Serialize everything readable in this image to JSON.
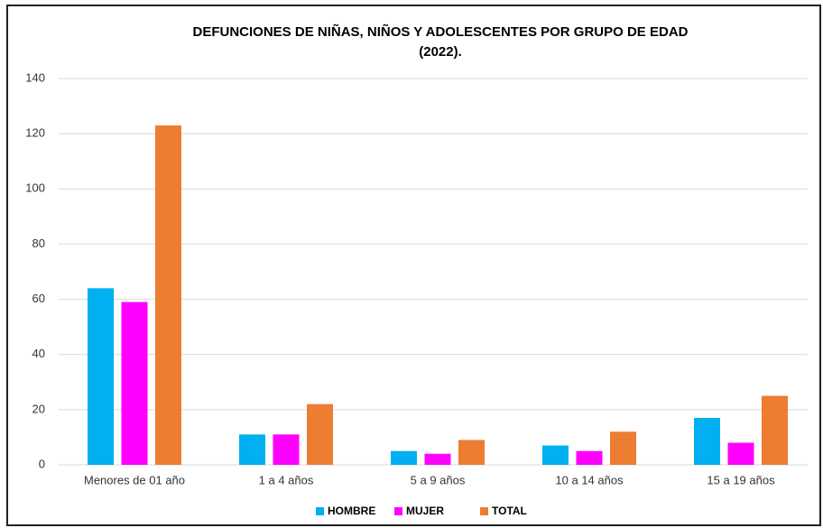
{
  "chart_data": {
    "type": "bar",
    "title": [
      "DEFUNCIONES DE NIÑAS, NIÑOS Y ADOLESCENTES POR GRUPO DE EDAD",
      "(2022)."
    ],
    "categories": [
      "Menores de 01 año",
      "1 a 4 años",
      "5 a 9 años",
      "10 a 14 años",
      "15 a 19 años"
    ],
    "series": [
      {
        "name": "HOMBRE",
        "color": "#00b0f0",
        "values": [
          64,
          11,
          5,
          7,
          17
        ]
      },
      {
        "name": "MUJER",
        "color": "#ff00ff",
        "values": [
          59,
          11,
          4,
          5,
          8
        ]
      },
      {
        "name": "TOTAL",
        "color": "#ed7d31",
        "values": [
          123,
          22,
          9,
          12,
          25
        ]
      }
    ],
    "ylim": [
      0,
      140
    ],
    "yticks": [
      0,
      20,
      40,
      60,
      80,
      100,
      120,
      140
    ],
    "grid": true,
    "legend": "bottom"
  }
}
